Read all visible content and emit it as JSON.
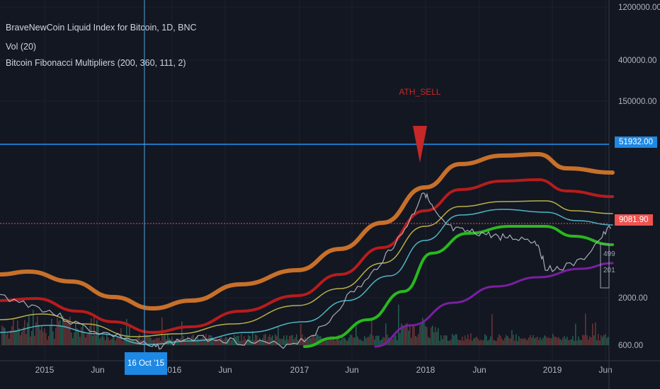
{
  "legend": {
    "main": "BraveNewCoin Liquid Index for Bitcoin, 1D, BNC",
    "volume": "Vol (20)",
    "indicator": "Bitcoin Fibonacci Multipliers (200, 360, 111, 2)"
  },
  "annotations": {
    "signal": "ATH_SELL"
  },
  "price_axis": {
    "ticks": [
      "1200000.00",
      "400000.00",
      "150000.00",
      "2000.00",
      "600.00"
    ],
    "horizontal_line_label": "51932.00",
    "last_price_label": "9081.90",
    "overlay_labels": [
      "499",
      "201"
    ]
  },
  "time_axis": {
    "ticks": [
      "2015",
      "Jun",
      "2016",
      "Jun",
      "2017",
      "Jun",
      "2018",
      "Jun",
      "2019",
      "Jun"
    ],
    "crosshair_label": "16 Oct '15"
  },
  "colors": {
    "background": "#131722",
    "orange_band": "#c8702a",
    "red_band": "#b71c1c",
    "yellow_band": "#b8b04a",
    "cyan_band": "#4db6c4",
    "green_band": "#29b81e",
    "purple_band": "#7b1fa2",
    "price_line": "#b8bcc8",
    "horizontal_line": "#2196f3",
    "last_price": "#ef5350",
    "sell_marker": "#c62828"
  },
  "chart_data": {
    "type": "line",
    "scale": "log",
    "y_axis_ticks": [
      1200000,
      400000,
      150000,
      2000,
      600
    ],
    "horizontal_line": 51932,
    "last_price": 9081.9,
    "x_dates": [
      "2014-10-01",
      "2015-01-01",
      "2015-04-01",
      "2015-07-01",
      "2015-10-16",
      "2016-01-01",
      "2016-04-01",
      "2016-07-01",
      "2016-10-01",
      "2017-01-01",
      "2017-04-01",
      "2017-07-01",
      "2017-10-01",
      "2017-12-17",
      "2018-01-15",
      "2018-04-01",
      "2018-07-01",
      "2018-10-01",
      "2019-01-01",
      "2019-04-01",
      "2019-06-15"
    ],
    "series": [
      {
        "name": "",
        "role": "price",
        "values": [
          400,
          300,
          250,
          260,
          270,
          430,
          420,
          650,
          640,
          950,
          1200,
          2600,
          5200,
          19000,
          13000,
          7500,
          6500,
          6300,
          3600,
          5200,
          9081.9
        ]
      }
    ],
    "bands_note": "Fibonacci multiplier bands drawn as smooth curves (orange, red, yellow, cyan, green, purple)"
  }
}
